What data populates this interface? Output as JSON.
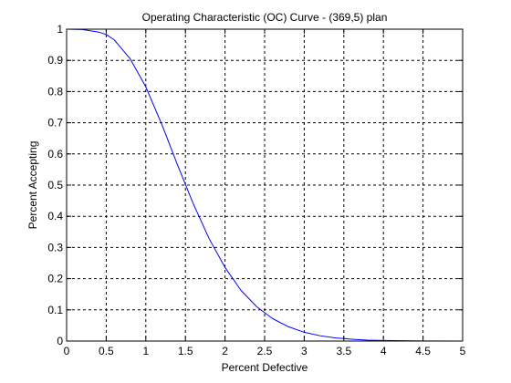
{
  "chart_data": {
    "type": "line",
    "title": "Operating Characteristic (OC) Curve - (369,5) plan",
    "xlabel": "Percent Defective",
    "ylabel": "Percent Accepting",
    "xlim": [
      0,
      5
    ],
    "ylim": [
      0,
      1
    ],
    "x_ticks": [
      "0",
      "0.5",
      "1",
      "1.5",
      "2",
      "2.5",
      "3",
      "3.5",
      "4",
      "4.5",
      "5"
    ],
    "y_ticks": [
      "0",
      "0.1",
      "0.2",
      "0.3",
      "0.4",
      "0.5",
      "0.6",
      "0.7",
      "0.8",
      "0.9",
      "1"
    ],
    "grid": true,
    "series": [
      {
        "color": "#0000ff",
        "x": [
          0,
          0.2,
          0.4,
          0.5,
          0.6,
          0.8,
          1.0,
          1.2,
          1.4,
          1.6,
          1.8,
          2.0,
          2.2,
          2.4,
          2.6,
          2.8,
          3.0,
          3.2,
          3.4,
          3.6,
          3.8,
          4.0,
          4.5,
          5.0
        ],
        "y": [
          1.0,
          0.999,
          0.991,
          0.983,
          0.966,
          0.906,
          0.815,
          0.696,
          0.565,
          0.44,
          0.328,
          0.236,
          0.163,
          0.11,
          0.072,
          0.046,
          0.028,
          0.017,
          0.01,
          0.006,
          0.003,
          0.002,
          0.0004,
          0.0001
        ]
      }
    ]
  }
}
